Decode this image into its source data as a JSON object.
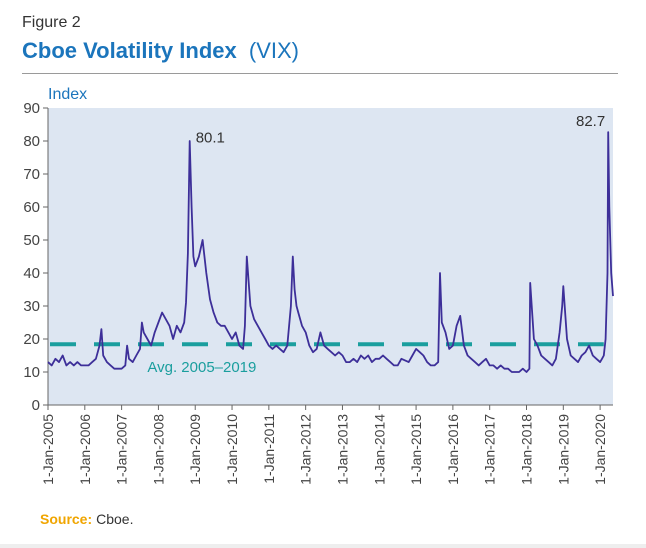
{
  "figure_label": "Figure 2",
  "title_main": "Cboe Volatility Index",
  "title_sub": "(VIX)",
  "source_label": "Source:",
  "source_text": "Cboe.",
  "colors": {
    "title": "#1b75bc",
    "line": "#3d2f99",
    "avg_line": "#1a9e9e",
    "plot_bg": "#dde6f2",
    "source_label": "#f0a500"
  },
  "chart_data": {
    "type": "line",
    "title": "",
    "ylabel": "Index",
    "xlabel": "",
    "ylim": [
      0,
      90
    ],
    "yticks": [
      0,
      10,
      20,
      30,
      40,
      50,
      60,
      70,
      80,
      90
    ],
    "xlim": [
      2005.0,
      2020.35
    ],
    "xtick_labels": [
      "1-Jan-2005",
      "1-Jan-2006",
      "1-Jan-2007",
      "1-Jan-2008",
      "1-Jan-2009",
      "1-Jan-2010",
      "1-Jan-2011",
      "1-Jan-2012",
      "1-Jan-2013",
      "1-Jan-2014",
      "1-Jan-2015",
      "1-Jan-2016",
      "1-Jan-2017",
      "1-Jan-2018",
      "1-Jan-2019",
      "1-Jan-2020"
    ],
    "grid": false,
    "series": [
      {
        "x": [
          2005.0,
          2005.1,
          2005.2,
          2005.3,
          2005.4,
          2005.5,
          2005.6,
          2005.7,
          2005.8,
          2005.9,
          2006.0,
          2006.1,
          2006.2,
          2006.3,
          2006.4,
          2006.45,
          2006.5,
          2006.6,
          2006.7,
          2006.8,
          2006.9,
          2007.0,
          2007.1,
          2007.15,
          2007.2,
          2007.3,
          2007.4,
          2007.5,
          2007.55,
          2007.6,
          2007.7,
          2007.8,
          2007.9,
          2008.0,
          2008.1,
          2008.2,
          2008.3,
          2008.4,
          2008.5,
          2008.6,
          2008.7,
          2008.75,
          2008.8,
          2008.85,
          2008.9,
          2008.95,
          2009.0,
          2009.1,
          2009.2,
          2009.3,
          2009.4,
          2009.5,
          2009.6,
          2009.7,
          2009.8,
          2009.9,
          2010.0,
          2010.1,
          2010.2,
          2010.3,
          2010.35,
          2010.4,
          2010.5,
          2010.6,
          2010.7,
          2010.8,
          2010.9,
          2011.0,
          2011.1,
          2011.2,
          2011.3,
          2011.4,
          2011.5,
          2011.6,
          2011.65,
          2011.7,
          2011.75,
          2011.8,
          2011.9,
          2012.0,
          2012.1,
          2012.2,
          2012.3,
          2012.4,
          2012.5,
          2012.6,
          2012.7,
          2012.8,
          2012.9,
          2013.0,
          2013.1,
          2013.2,
          2013.3,
          2013.4,
          2013.5,
          2013.6,
          2013.7,
          2013.8,
          2013.9,
          2014.0,
          2014.1,
          2014.2,
          2014.3,
          2014.4,
          2014.5,
          2014.6,
          2014.8,
          2014.9,
          2015.0,
          2015.1,
          2015.2,
          2015.3,
          2015.4,
          2015.5,
          2015.6,
          2015.65,
          2015.7,
          2015.8,
          2015.9,
          2016.0,
          2016.1,
          2016.2,
          2016.3,
          2016.4,
          2016.5,
          2016.6,
          2016.7,
          2016.8,
          2016.9,
          2017.0,
          2017.1,
          2017.2,
          2017.3,
          2017.4,
          2017.5,
          2017.6,
          2017.7,
          2017.8,
          2017.9,
          2018.0,
          2018.08,
          2018.1,
          2018.2,
          2018.3,
          2018.4,
          2018.5,
          2018.6,
          2018.7,
          2018.8,
          2018.9,
          2018.97,
          2019.0,
          2019.1,
          2019.2,
          2019.3,
          2019.4,
          2019.5,
          2019.6,
          2019.7,
          2019.8,
          2019.9,
          2020.0,
          2020.05,
          2020.1,
          2020.15,
          2020.2,
          2020.22,
          2020.25,
          2020.3,
          2020.35
        ],
        "values": [
          13,
          12,
          14,
          13,
          15,
          12,
          13,
          12,
          13,
          12,
          12,
          12,
          13,
          14,
          18,
          23,
          15,
          13,
          12,
          11,
          11,
          11,
          12,
          18,
          14,
          13,
          15,
          17,
          25,
          22,
          20,
          18,
          22,
          25,
          28,
          26,
          24,
          20,
          24,
          22,
          25,
          31,
          46,
          80,
          60,
          45,
          42,
          45,
          50,
          40,
          32,
          28,
          25,
          24,
          24,
          22,
          20,
          22,
          18,
          17,
          24,
          45,
          30,
          26,
          24,
          22,
          20,
          18,
          17,
          18,
          17,
          16,
          18,
          30,
          45,
          35,
          30,
          28,
          24,
          22,
          18,
          16,
          17,
          22,
          18,
          17,
          16,
          15,
          16,
          15,
          13,
          13,
          14,
          13,
          15,
          14,
          15,
          13,
          14,
          14,
          15,
          14,
          13,
          12,
          12,
          14,
          13,
          15,
          17,
          16,
          15,
          13,
          12,
          12,
          13,
          40,
          25,
          22,
          17,
          18,
          24,
          27,
          18,
          15,
          14,
          13,
          12,
          13,
          14,
          12,
          12,
          11,
          12,
          11,
          11,
          10,
          10,
          10,
          11,
          10,
          11,
          37,
          20,
          18,
          15,
          14,
          13,
          12,
          14,
          22,
          30,
          36,
          20,
          15,
          14,
          13,
          15,
          16,
          18,
          15,
          14,
          13,
          14,
          15,
          20,
          40,
          82.7,
          60,
          40,
          33
        ]
      }
    ],
    "annotations": [
      {
        "text": "80.1",
        "x": 2008.85,
        "y": 80.1
      },
      {
        "text": "82.7",
        "x": 2020.22,
        "y": 82.7
      }
    ],
    "reference_line": {
      "label": "Avg. 2005–2019",
      "y": 18.4,
      "style": "dashed"
    }
  }
}
